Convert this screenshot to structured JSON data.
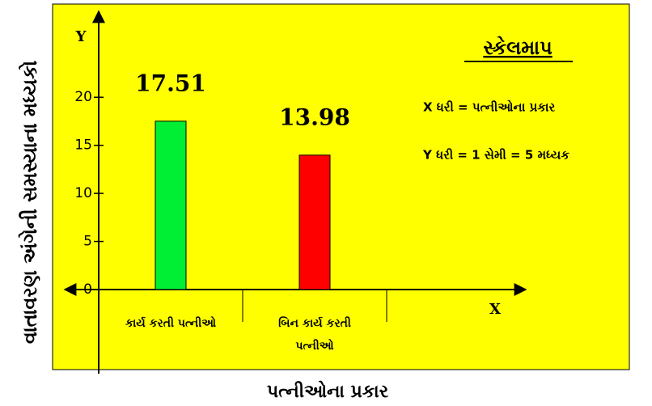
{
  "chart_data": {
    "type": "bar",
    "y_label": "વાતાવરણ અંગેની સમસ્યાના મધ્યકો",
    "x_label": "પત્નીઓના પ્રકાર",
    "y_axis_letter": "Y",
    "x_axis_letter": "X",
    "categories": [
      "કાર્ય કરતી પત્નીઓ",
      "બિન કાર્ય કરતી પત્નીઓ"
    ],
    "values": [
      17.51,
      13.98
    ],
    "colors": [
      "#00ee33",
      "#ff0000"
    ],
    "ylim": [
      0,
      28.6
    ],
    "yticks": [
      0,
      5,
      10,
      15,
      20
    ],
    "legend": {
      "title": "સ્કેલમાપ",
      "lines": [
        "X ધરી = પત્નીઓના પ્રકાર",
        "Y ધરી = 1 સેમી = 5 મધ્યક"
      ]
    }
  }
}
